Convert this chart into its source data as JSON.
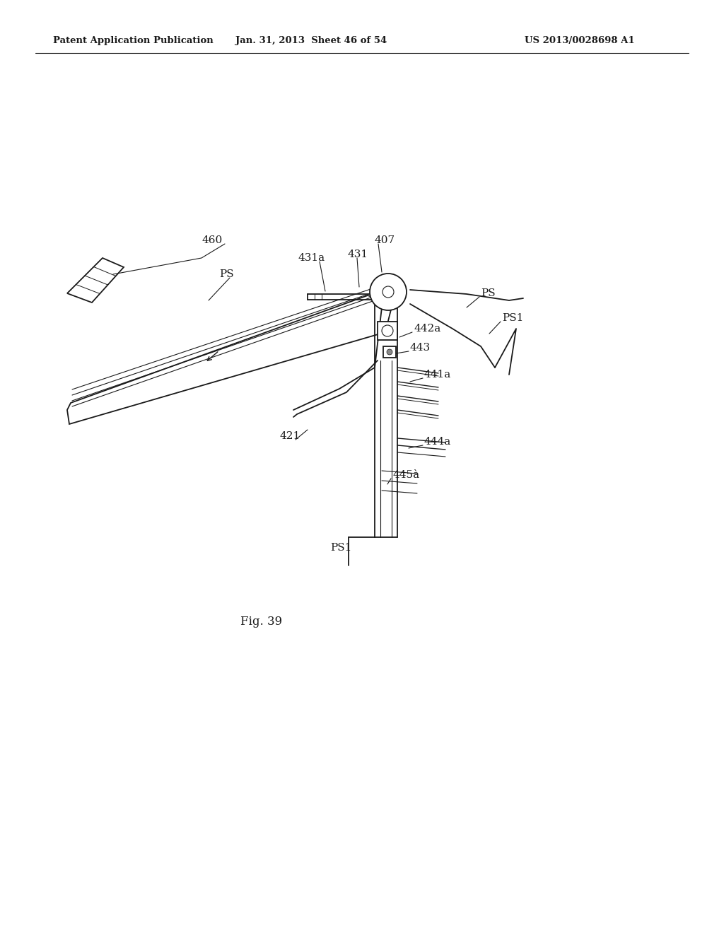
{
  "bg_color": "#ffffff",
  "header_left": "Patent Application Publication",
  "header_center": "Jan. 31, 2013  Sheet 46 of 54",
  "header_right": "US 2013/0028698 A1",
  "fig_label": "Fig. 39",
  "line_color": "#1a1a1a"
}
